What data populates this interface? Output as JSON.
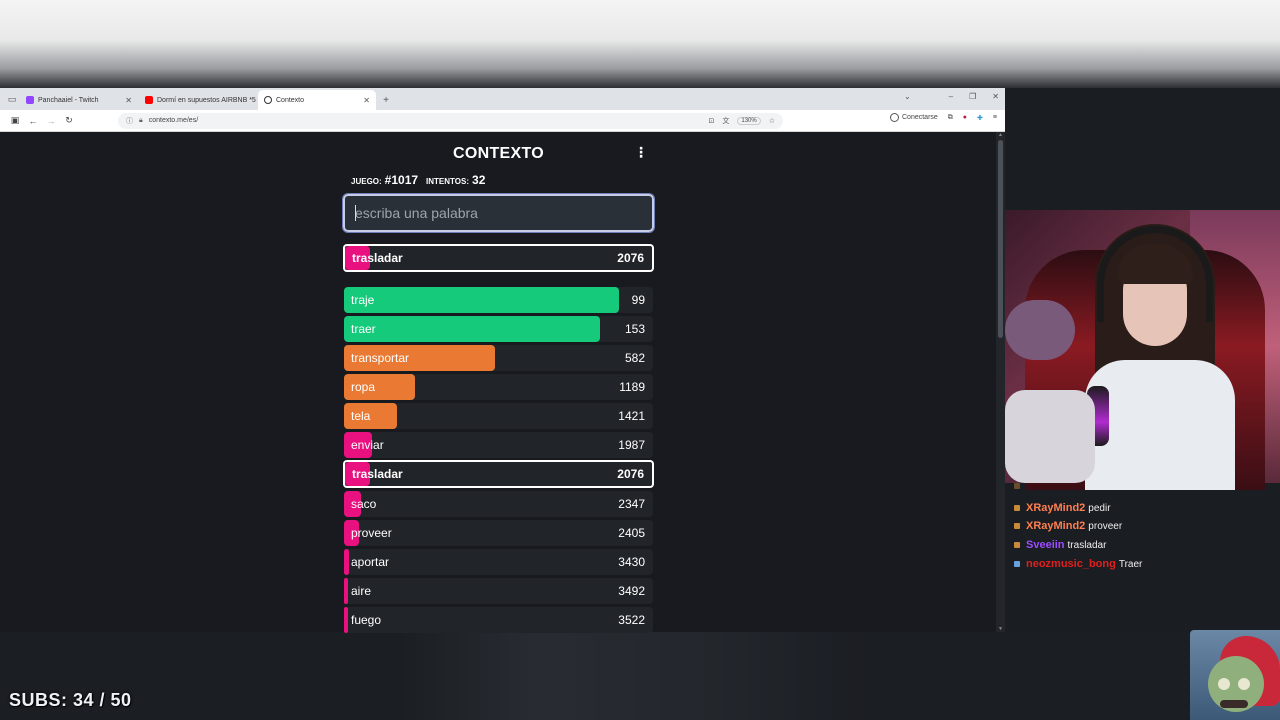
{
  "browser": {
    "tabs": [
      {
        "title": "Panchaaiel - Twitch",
        "favicon_color": "#9146ff",
        "active": false
      },
      {
        "title": "Dormí en supuestos AIRBNB *5",
        "favicon_color": "#ff0000",
        "active": false
      },
      {
        "title": "Contexto",
        "favicon_color": "#333333",
        "active": true
      }
    ],
    "url": "contexto.me/es/",
    "zoom": "130%",
    "connect_label": "Conectarse"
  },
  "game": {
    "title": "CONTEXTO",
    "game_label": "JUEGO:",
    "game_number": "#1017",
    "attempts_label": "INTENTOS:",
    "attempts": "32",
    "input_placeholder": "escriba una palabra",
    "last_guess": {
      "word": "trasladar",
      "rank": 2076
    },
    "guesses": [
      {
        "word": "traje",
        "rank": 99,
        "color": "#15cb7b",
        "fill": 0.89
      },
      {
        "word": "traer",
        "rank": 153,
        "color": "#15cb7b",
        "fill": 0.83
      },
      {
        "word": "transportar",
        "rank": 582,
        "color": "#ea7a33",
        "fill": 0.49
      },
      {
        "word": "ropa",
        "rank": 1189,
        "color": "#ea7a33",
        "fill": 0.23
      },
      {
        "word": "tela",
        "rank": 1421,
        "color": "#ea7a33",
        "fill": 0.17
      },
      {
        "word": "enviar",
        "rank": 1987,
        "color": "#e8117f",
        "fill": 0.09
      },
      {
        "word": "trasladar",
        "rank": 2076,
        "color": "#e8117f",
        "fill": 0.08,
        "highlight": true
      },
      {
        "word": "saco",
        "rank": 2347,
        "color": "#e8117f",
        "fill": 0.055
      },
      {
        "word": "proveer",
        "rank": 2405,
        "color": "#e8117f",
        "fill": 0.05
      },
      {
        "word": "aportar",
        "rank": 3430,
        "color": "#e8117f",
        "fill": 0.015
      },
      {
        "word": "aire",
        "rank": 3492,
        "color": "#e8117f",
        "fill": 0.012
      },
      {
        "word": "fuego",
        "rank": 3522,
        "color": "#e8117f",
        "fill": 0.01
      }
    ]
  },
  "chat": [
    {
      "user": "XRayMind2",
      "message": "pedir",
      "color": "#ff7f50",
      "badge": "#c98a3a"
    },
    {
      "user": "XRayMind2",
      "message": "proveer",
      "color": "#ff7f50",
      "badge": "#c98a3a"
    },
    {
      "user": "Sveeiin",
      "message": "trasladar",
      "color": "#9b4dff",
      "badge": "#c98a3a"
    },
    {
      "user": "neozmusic_bong",
      "message": "Traer",
      "color": "#e0201e",
      "badge": "#6aa0e0"
    }
  ],
  "subs": "SUBS: 34 / 50"
}
